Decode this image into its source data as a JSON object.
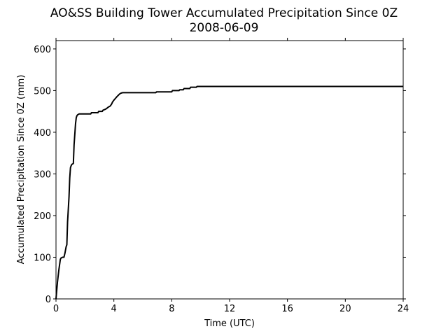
{
  "chart_data": {
    "type": "line",
    "title": "AO&SS Building Tower Accumulated Precipitation Since 0Z",
    "subtitle": "2008-06-09",
    "xlabel": "Time (UTC)",
    "ylabel": "Accumulated Precipitation Since 0Z (mm)",
    "xlim": [
      0,
      24
    ],
    "ylim": [
      0,
      620
    ],
    "xticks": [
      0,
      4,
      8,
      12,
      16,
      20,
      24
    ],
    "yticks": [
      0,
      100,
      200,
      300,
      400,
      500,
      600
    ],
    "grid": false,
    "line_color": "#000000",
    "series": [
      {
        "x": [
          0.0,
          0.1,
          0.2,
          0.3,
          0.35,
          0.45,
          0.55,
          0.62,
          0.7,
          0.75,
          0.8,
          0.85,
          0.9,
          0.95,
          1.0,
          1.05,
          1.1,
          1.2,
          1.25,
          1.3,
          1.35,
          1.4,
          1.45,
          1.5,
          1.6,
          2.0,
          2.4,
          2.45,
          2.9,
          2.95,
          3.2,
          3.25,
          3.4,
          3.5,
          3.6,
          3.75,
          3.85,
          3.9,
          4.0,
          4.2,
          4.4,
          4.5,
          4.6,
          5.0,
          6.0,
          6.9,
          6.95,
          8.0,
          8.05,
          8.5,
          8.55,
          8.8,
          8.85,
          9.25,
          9.3,
          9.7,
          9.75,
          10.0,
          24.0
        ],
        "y": [
          0,
          40,
          70,
          95,
          98,
          100,
          100,
          110,
          125,
          130,
          185,
          215,
          245,
          290,
          315,
          320,
          323,
          325,
          370,
          395,
          420,
          435,
          440,
          442,
          444,
          444,
          444,
          447,
          447,
          450,
          450,
          453,
          455,
          457,
          460,
          463,
          468,
          472,
          477,
          485,
          492,
          494,
          495,
          495,
          495,
          495,
          497,
          497,
          500,
          500,
          502,
          502,
          505,
          505,
          508,
          508,
          510,
          510,
          510
        ]
      }
    ]
  }
}
